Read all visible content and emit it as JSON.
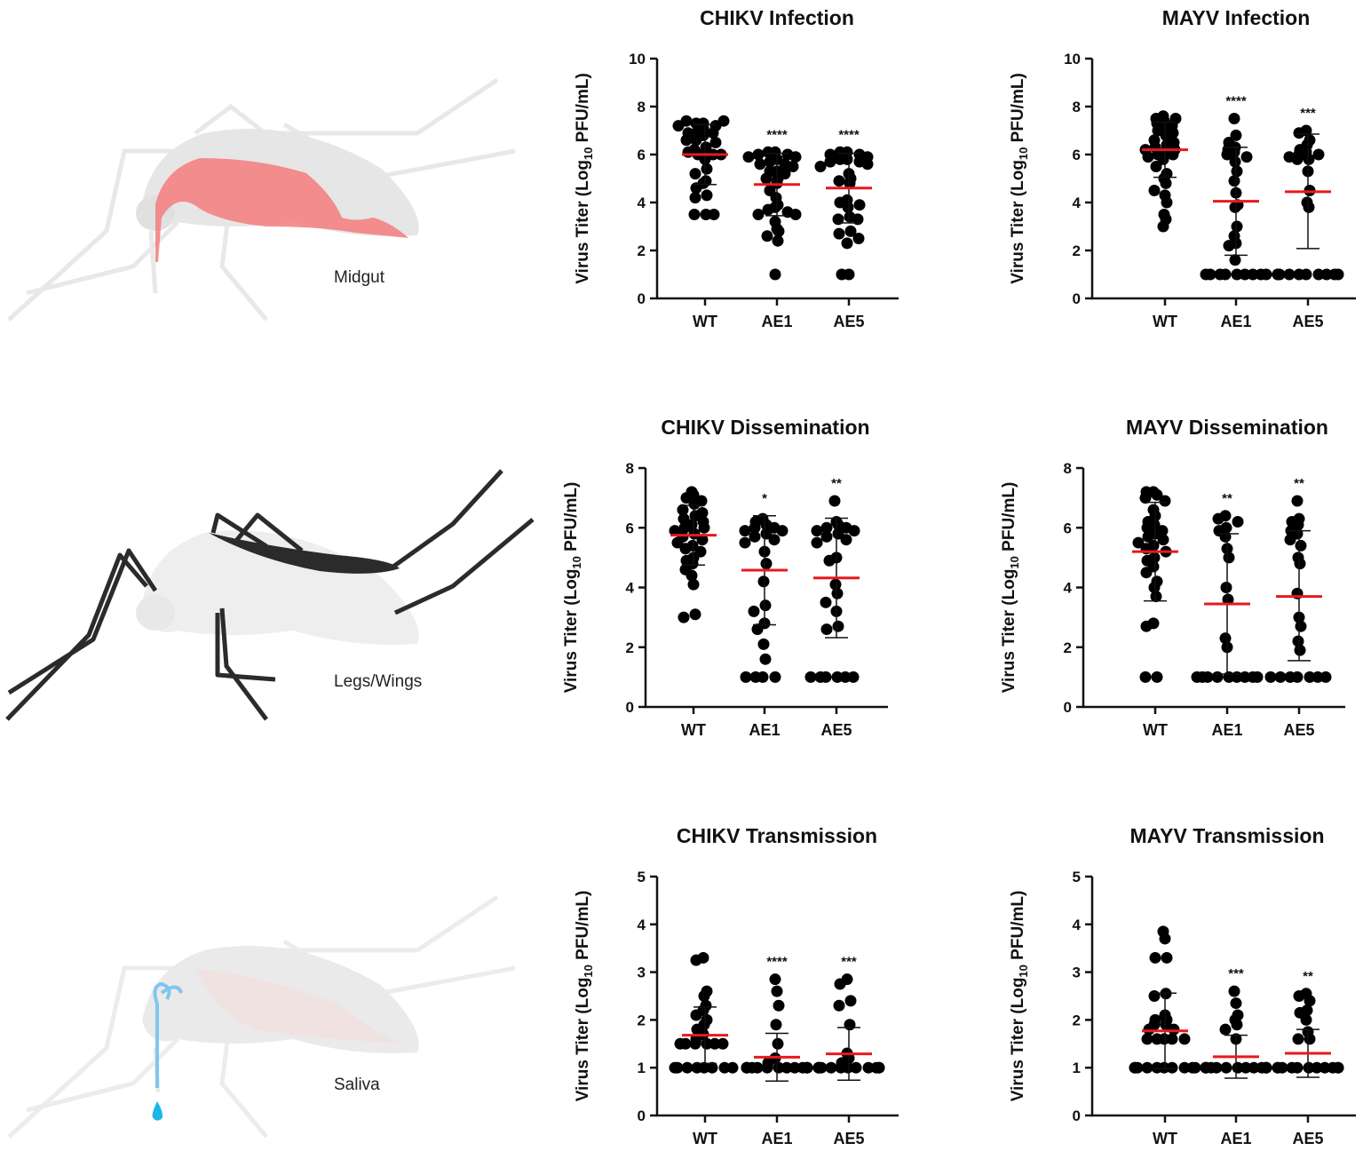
{
  "illustrations": [
    {
      "label": "Midgut",
      "highlight_color": "#f47b7b"
    },
    {
      "label": "Legs/Wings",
      "highlight_color": "#2b2b2b"
    },
    {
      "label": "Saliva",
      "highlight_color": "#7fc6ef"
    }
  ],
  "colors": {
    "mean_line": "#e8191c",
    "points": "#000000",
    "body": "#e6e6e6"
  },
  "chart_data": [
    {
      "type": "scatter",
      "title": "CHIKV Infection",
      "ylabel": "Virus Titer (Log10 PFU/mL)",
      "ylim": [
        0,
        10
      ],
      "yticks": [
        0,
        2,
        4,
        6,
        8,
        10
      ],
      "categories": [
        "WT",
        "AE1",
        "AE5"
      ],
      "groups": [
        {
          "name": "WT",
          "mean": 6.0,
          "sd_low": 4.75,
          "sd_high": 7.25,
          "significance": "",
          "points": [
            7.3,
            7.3,
            7.2,
            7.4,
            7.4,
            7.1,
            7.2,
            7.0,
            6.9,
            6.9,
            6.8,
            6.6,
            6.5,
            6.6,
            6.3,
            6.2,
            6.1,
            6.0,
            6.0,
            6.1,
            6.0,
            5.8,
            5.4,
            5.2,
            4.9,
            4.8,
            4.6,
            4.3,
            4.2,
            3.5,
            3.5,
            3.5
          ]
        },
        {
          "name": "AE1",
          "mean": 4.75,
          "sd_low": 3.45,
          "sd_high": 6.05,
          "significance": "****",
          "points": [
            6.1,
            6.1,
            6.0,
            6.0,
            5.9,
            5.9,
            5.8,
            5.7,
            5.6,
            5.6,
            5.5,
            5.3,
            5.3,
            5.2,
            5.0,
            5.0,
            4.8,
            4.5,
            4.2,
            3.9,
            3.8,
            3.7,
            3.6,
            3.5,
            3.5,
            3.2,
            2.9,
            2.8,
            2.6,
            2.4,
            1.0
          ]
        },
        {
          "name": "AE5",
          "mean": 4.6,
          "sd_low": 3.15,
          "sd_high": 6.05,
          "significance": "****",
          "points": [
            6.1,
            6.1,
            6.0,
            6.0,
            5.9,
            5.8,
            5.8,
            5.7,
            5.7,
            5.6,
            5.5,
            5.2,
            5.0,
            4.9,
            4.8,
            4.1,
            4.0,
            3.9,
            3.8,
            3.4,
            3.3,
            3.3,
            2.8,
            2.7,
            2.5,
            2.3,
            1.0,
            1.0
          ]
        }
      ]
    },
    {
      "type": "scatter",
      "title": "MAYV Infection",
      "ylabel": "Virus Titer (Log10 PFU/mL)",
      "ylim": [
        0,
        10
      ],
      "yticks": [
        0,
        2,
        4,
        6,
        8,
        10
      ],
      "categories": [
        "WT",
        "AE1",
        "AE5"
      ],
      "groups": [
        {
          "name": "WT",
          "mean": 6.2,
          "sd_low": 5.05,
          "sd_high": 7.35,
          "significance": "",
          "points": [
            7.6,
            7.5,
            7.5,
            7.4,
            7.3,
            7.2,
            7.1,
            7.0,
            6.9,
            6.8,
            6.6,
            6.5,
            6.4,
            6.3,
            6.2,
            6.2,
            6.1,
            6.0,
            6.0,
            5.9,
            5.8,
            5.5,
            5.2,
            5.0,
            4.8,
            4.5,
            4.3,
            4.0,
            3.5,
            3.3,
            3.0
          ]
        },
        {
          "name": "AE1",
          "mean": 4.05,
          "sd_low": 1.8,
          "sd_high": 6.3,
          "significance": "****",
          "points": [
            7.5,
            6.8,
            6.5,
            6.3,
            6.2,
            6.1,
            6.0,
            5.9,
            5.7,
            5.3,
            4.9,
            4.4,
            3.9,
            3.8,
            3.0,
            2.6,
            2.3,
            2.2,
            1.6,
            1.0,
            1.0,
            1.0,
            1.0,
            1.0,
            1.0,
            1.0,
            1.0,
            1.0
          ]
        },
        {
          "name": "AE5",
          "mean": 4.45,
          "sd_low": 2.08,
          "sd_high": 6.85,
          "significance": "***",
          "points": [
            7.0,
            6.9,
            6.6,
            6.4,
            6.2,
            6.1,
            6.0,
            6.0,
            5.9,
            5.8,
            5.8,
            5.3,
            4.5,
            4.0,
            3.8,
            1.0,
            1.0,
            1.0,
            1.0,
            1.0,
            1.0,
            1.0,
            1.0,
            1.0,
            1.0
          ]
        }
      ]
    },
    {
      "type": "scatter",
      "title": "CHIKV Dissemination",
      "ylabel": "Virus Titer (Log10 PFU/mL)",
      "ylim": [
        0,
        8
      ],
      "yticks": [
        0,
        2,
        4,
        6,
        8
      ],
      "categories": [
        "WT",
        "AE1",
        "AE5"
      ],
      "groups": [
        {
          "name": "WT",
          "mean": 5.75,
          "sd_low": 4.75,
          "sd_high": 6.75,
          "significance": "",
          "points": [
            7.2,
            7.1,
            7.0,
            6.9,
            6.8,
            6.6,
            6.5,
            6.4,
            6.3,
            6.2,
            6.1,
            6.0,
            6.0,
            5.9,
            5.8,
            5.7,
            5.6,
            5.5,
            5.4,
            5.3,
            5.2,
            5.0,
            4.9,
            4.8,
            4.6,
            4.4,
            4.1,
            3.1,
            3.0
          ]
        },
        {
          "name": "AE1",
          "mean": 4.58,
          "sd_low": 2.75,
          "sd_high": 6.4,
          "significance": "*",
          "points": [
            6.3,
            6.2,
            6.1,
            6.0,
            6.0,
            5.9,
            5.9,
            5.8,
            5.7,
            5.6,
            5.5,
            5.2,
            4.8,
            4.2,
            3.4,
            3.2,
            2.8,
            2.6,
            2.1,
            1.6,
            1.0,
            1.0,
            1.0,
            1.0
          ]
        },
        {
          "name": "AE5",
          "mean": 4.32,
          "sd_low": 2.32,
          "sd_high": 6.32,
          "significance": "**",
          "points": [
            6.9,
            6.2,
            6.1,
            6.0,
            6.0,
            5.9,
            5.9,
            5.8,
            5.7,
            5.6,
            5.5,
            5.0,
            4.9,
            4.1,
            3.8,
            3.5,
            3.2,
            2.7,
            2.6,
            1.0,
            1.0,
            1.0,
            1.0,
            1.0,
            1.0
          ]
        }
      ]
    },
    {
      "type": "scatter",
      "title": "MAYV Dissemination",
      "ylabel": "Virus Titer (Log10 PFU/mL)",
      "ylim": [
        0,
        8
      ],
      "yticks": [
        0,
        2,
        4,
        6,
        8
      ],
      "categories": [
        "WT",
        "AE1",
        "AE5"
      ],
      "groups": [
        {
          "name": "WT",
          "mean": 5.2,
          "sd_low": 3.55,
          "sd_high": 6.85,
          "significance": "",
          "points": [
            7.2,
            7.2,
            7.1,
            7.0,
            6.9,
            6.6,
            6.4,
            6.2,
            6.1,
            6.0,
            5.9,
            5.8,
            5.7,
            5.6,
            5.5,
            5.4,
            5.3,
            5.2,
            5.0,
            4.9,
            4.7,
            4.5,
            4.2,
            4.0,
            3.7,
            2.8,
            2.7,
            1.0,
            1.0
          ]
        },
        {
          "name": "AE1",
          "mean": 3.45,
          "sd_low": 1.1,
          "sd_high": 5.8,
          "significance": "**",
          "points": [
            6.4,
            6.3,
            6.2,
            6.0,
            5.9,
            5.7,
            5.3,
            5.0,
            4.0,
            3.6,
            2.3,
            2.0,
            1.0,
            1.0,
            1.0,
            1.0,
            1.0,
            1.0,
            1.0,
            1.0,
            1.0
          ]
        },
        {
          "name": "AE5",
          "mean": 3.7,
          "sd_low": 1.55,
          "sd_high": 5.9,
          "significance": "**",
          "points": [
            6.9,
            6.3,
            6.2,
            6.1,
            5.9,
            5.8,
            5.6,
            5.4,
            5.0,
            4.8,
            3.8,
            3.0,
            2.7,
            2.2,
            1.9,
            1.0,
            1.0,
            1.0,
            1.0,
            1.0,
            1.0,
            1.0
          ]
        }
      ]
    },
    {
      "type": "scatter",
      "title": "CHIKV Transmission",
      "ylabel": "Virus Titer (Log10 PFU/mL)",
      "ylim": [
        0,
        5
      ],
      "yticks": [
        0,
        1,
        2,
        3,
        4,
        5
      ],
      "categories": [
        "WT",
        "AE1",
        "AE5"
      ],
      "groups": [
        {
          "name": "WT",
          "mean": 1.68,
          "sd_low": 1.09,
          "sd_high": 2.27,
          "significance": "",
          "points": [
            3.3,
            3.25,
            2.6,
            2.5,
            2.3,
            2.2,
            2.1,
            2.0,
            1.9,
            1.8,
            1.7,
            1.6,
            1.5,
            1.5,
            1.5,
            1.5,
            1.5,
            1.5,
            1.0,
            1.0,
            1.0,
            1.0,
            1.0,
            1.0,
            1.0,
            1.0
          ]
        },
        {
          "name": "AE1",
          "mean": 1.22,
          "sd_low": 0.72,
          "sd_high": 1.72,
          "significance": "****",
          "points": [
            2.85,
            2.6,
            2.3,
            1.9,
            1.5,
            1.2,
            1.1,
            1.0,
            1.0,
            1.0,
            1.0,
            1.0,
            1.0,
            1.0,
            1.0,
            1.0,
            1.0,
            1.0,
            1.0,
            1.0
          ]
        },
        {
          "name": "AE5",
          "mean": 1.29,
          "sd_low": 0.74,
          "sd_high": 1.84,
          "significance": "***",
          "points": [
            2.85,
            2.75,
            2.4,
            2.3,
            1.9,
            1.3,
            1.2,
            1.1,
            1.0,
            1.0,
            1.0,
            1.0,
            1.0,
            1.0,
            1.0,
            1.0,
            1.0,
            1.0,
            1.0,
            1.0
          ]
        }
      ]
    },
    {
      "type": "scatter",
      "title": "MAYV Transmission",
      "ylabel": "Virus Titer (Log10 PFU/mL)",
      "ylim": [
        0,
        5
      ],
      "yticks": [
        0,
        1,
        2,
        3,
        4,
        5
      ],
      "categories": [
        "WT",
        "AE1",
        "AE5"
      ],
      "groups": [
        {
          "name": "WT",
          "mean": 1.77,
          "sd_low": 0.98,
          "sd_high": 2.56,
          "significance": "",
          "points": [
            3.85,
            3.7,
            3.3,
            3.3,
            2.55,
            2.5,
            2.1,
            2.0,
            2.0,
            1.9,
            1.9,
            1.8,
            1.8,
            1.6,
            1.6,
            1.6,
            1.6,
            1.6,
            1.0,
            1.0,
            1.0,
            1.0,
            1.0,
            1.0,
            1.0,
            1.0,
            1.0,
            1.0
          ]
        },
        {
          "name": "AE1",
          "mean": 1.23,
          "sd_low": 0.78,
          "sd_high": 1.68,
          "significance": "***",
          "points": [
            2.6,
            2.35,
            2.1,
            2.0,
            1.9,
            1.8,
            1.6,
            1.0,
            1.0,
            1.0,
            1.0,
            1.0,
            1.0,
            1.0,
            1.0,
            1.0,
            1.0,
            1.0,
            1.0,
            1.0
          ]
        },
        {
          "name": "AE5",
          "mean": 1.3,
          "sd_low": 0.8,
          "sd_high": 1.8,
          "significance": "**",
          "points": [
            2.55,
            2.5,
            2.4,
            2.2,
            2.15,
            2.0,
            1.75,
            1.6,
            1.6,
            1.0,
            1.0,
            1.0,
            1.0,
            1.0,
            1.0,
            1.0,
            1.0,
            1.0,
            1.0,
            1.0
          ]
        }
      ]
    }
  ]
}
